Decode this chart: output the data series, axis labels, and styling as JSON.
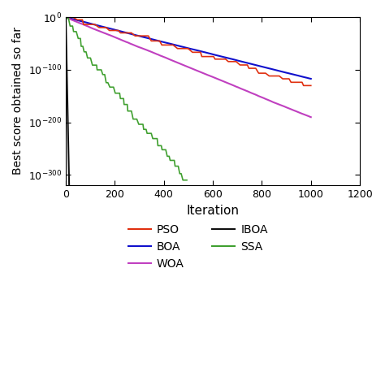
{
  "title": "",
  "xlabel": "Iteration",
  "ylabel": "Best score obtained so far",
  "xlim": [
    0,
    1200
  ],
  "x_ticks": [
    0,
    200,
    400,
    600,
    800,
    1000,
    1200
  ],
  "y_ticks_exp": [
    0,
    -100,
    -200,
    -300
  ],
  "ylim_min_exp": -320,
  "ylim_max_exp": 1,
  "colors": {
    "PSO": "#e03010",
    "WOA": "#c040c0",
    "SSA": "#40a030",
    "BOA": "#1010cc",
    "IBOA": "#101010"
  },
  "max_iter": 1000,
  "seed": 7
}
